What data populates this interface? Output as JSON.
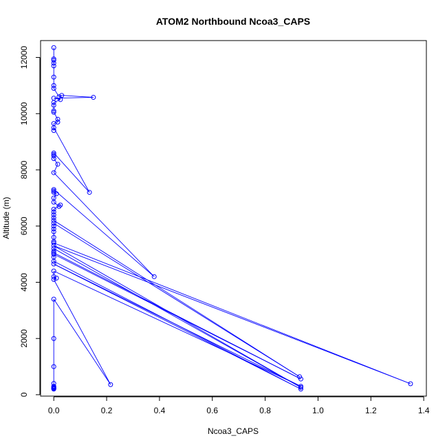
{
  "chart_data": {
    "type": "scatter",
    "style": "points-connected-by-lines",
    "title": "ATOM2 Northbound Ncoa3_CAPS",
    "xlabel": "Ncoa3_CAPS",
    "ylabel": "Altitude (m)",
    "xlim": [
      -0.05,
      1.41
    ],
    "ylim": [
      -50,
      12600
    ],
    "xticks": [
      0.0,
      0.2,
      0.4,
      0.6,
      0.8,
      1.0,
      1.2,
      1.4
    ],
    "xtick_labels": [
      "0.0",
      "0.2",
      "0.4",
      "0.6",
      "0.8",
      "1.0",
      "1.2",
      "1.4"
    ],
    "yticks": [
      0,
      2000,
      4000,
      6000,
      8000,
      10000,
      12000
    ],
    "ytick_labels": [
      "0",
      "2000",
      "4000",
      "6000",
      "8000",
      "10000",
      "12000"
    ],
    "grid": false,
    "series": [
      {
        "color": "#0000ff",
        "points": [
          [
            0.0,
            12350
          ],
          [
            0.0,
            11950
          ],
          [
            0.0,
            11900
          ],
          [
            0.0,
            11800
          ],
          [
            0.0,
            11700
          ],
          [
            0.0,
            11300
          ],
          [
            0.0,
            11000
          ],
          [
            0.0,
            10900
          ],
          [
            0.02,
            10600
          ],
          [
            0.03,
            10650
          ],
          [
            0.15,
            10580
          ],
          [
            0.0,
            10550
          ],
          [
            0.025,
            10500
          ],
          [
            0.0,
            10400
          ],
          [
            0.0,
            10300
          ],
          [
            0.0,
            10100
          ],
          [
            0.0,
            10050
          ],
          [
            0.015,
            9800
          ],
          [
            0.015,
            9700
          ],
          [
            0.0,
            9650
          ],
          [
            0.0,
            9400
          ],
          [
            0.0,
            9500
          ],
          [
            0.135,
            7200
          ],
          [
            0.0,
            8600
          ],
          [
            0.0,
            8550
          ],
          [
            0.0,
            8500
          ],
          [
            0.0,
            8400
          ],
          [
            0.015,
            8200
          ],
          [
            0.0,
            7900
          ],
          [
            0.38,
            4200
          ],
          [
            0.0,
            7300
          ],
          [
            0.0,
            7250
          ],
          [
            0.0,
            7200
          ],
          [
            0.01,
            7150
          ],
          [
            0.0,
            7000
          ],
          [
            0.0,
            6850
          ],
          [
            0.02,
            6700
          ],
          [
            0.025,
            6750
          ],
          [
            0.0,
            6600
          ],
          [
            0.0,
            6500
          ],
          [
            0.0,
            6400
          ],
          [
            0.0,
            6300
          ],
          [
            0.0,
            6200
          ],
          [
            0.93,
            640
          ],
          [
            0.0,
            6100
          ],
          [
            0.0,
            6000
          ],
          [
            0.0,
            5900
          ],
          [
            0.0,
            5800
          ],
          [
            0.0,
            5600
          ],
          [
            0.0,
            5450
          ],
          [
            0.0,
            5400
          ],
          [
            1.35,
            390
          ],
          [
            0.0,
            5300
          ],
          [
            0.935,
            260
          ],
          [
            0.0,
            5200
          ],
          [
            0.0,
            5100
          ],
          [
            0.0,
            5050
          ],
          [
            0.935,
            560
          ],
          [
            0.0,
            5000
          ],
          [
            0.0,
            4900
          ],
          [
            0.0,
            4750
          ],
          [
            0.935,
            200
          ],
          [
            0.0,
            4650
          ],
          [
            0.935,
            300
          ],
          [
            0.0,
            4400
          ],
          [
            0.0,
            4200
          ],
          [
            0.01,
            4150
          ],
          [
            0.0,
            4100
          ],
          [
            0.215,
            360
          ],
          [
            0.0,
            3400
          ],
          [
            0.0,
            2000
          ],
          [
            0.0,
            1000
          ],
          [
            0.0,
            400
          ],
          [
            0.0,
            300
          ],
          [
            0.0,
            280
          ],
          [
            0.0,
            260
          ],
          [
            0.0,
            240
          ],
          [
            0.0,
            230
          ],
          [
            0.0,
            220
          ],
          [
            0.0,
            210
          ],
          [
            0.0,
            200
          ]
        ]
      }
    ]
  }
}
